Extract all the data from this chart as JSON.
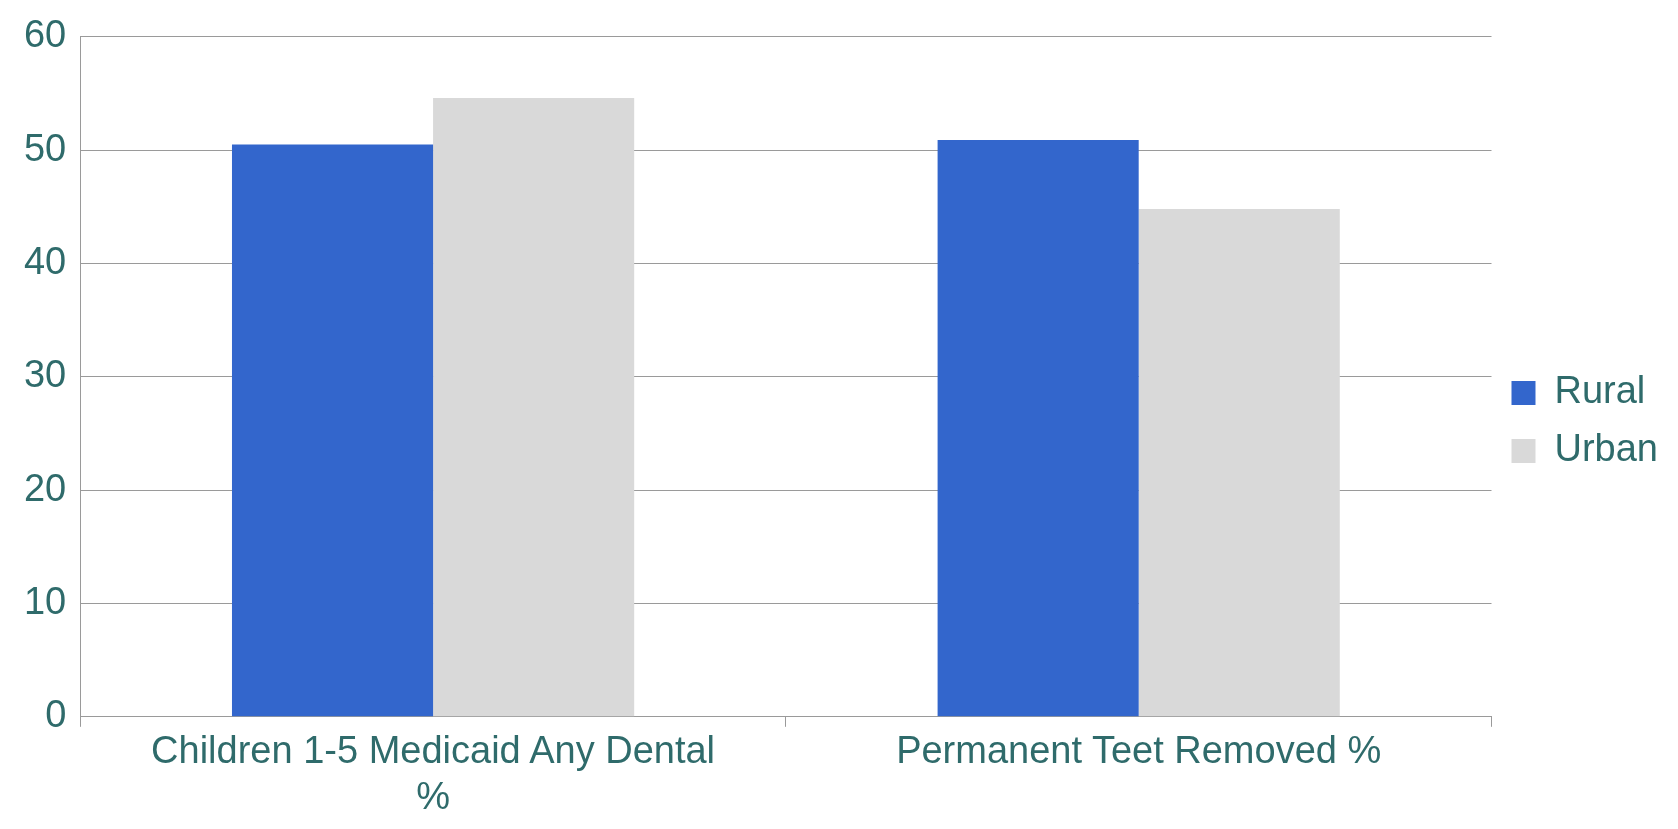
{
  "chart_data": {
    "type": "bar",
    "categories": [
      "Children 1-5 Medicaid Any Dental %",
      "Permanent Teet Removed %"
    ],
    "series": [
      {
        "name": "Rural",
        "color": "#3366cc",
        "values": [
          50.5,
          50.9
        ]
      },
      {
        "name": "Urban",
        "color": "#d9d9d9",
        "values": [
          54.6,
          44.8
        ]
      }
    ],
    "ylim": [
      0,
      60
    ],
    "yticks": [
      0,
      10,
      20,
      30,
      40,
      50,
      60
    ],
    "grid": "y",
    "legend": "right"
  }
}
